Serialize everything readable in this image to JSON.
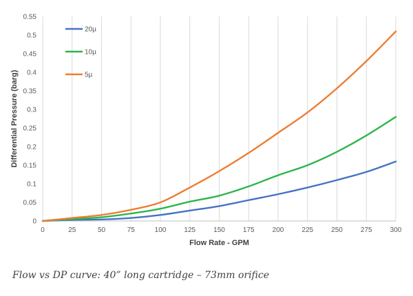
{
  "caption": "Flow vs DP curve: 40” long cartridge – 73mm orifice",
  "chart_data": {
    "type": "line",
    "title": "",
    "xlabel": "Flow Rate - GPM",
    "ylabel": "Differential Pressure (barg)",
    "xlim": [
      0,
      300
    ],
    "ylim": [
      0,
      0.55
    ],
    "x_ticks": [
      0,
      25,
      50,
      75,
      100,
      125,
      150,
      175,
      200,
      225,
      250,
      275,
      300
    ],
    "y_ticks": [
      0,
      0.05,
      0.1,
      0.15,
      0.2,
      0.25,
      0.3,
      0.35,
      0.4,
      0.45,
      0.5,
      0.55
    ],
    "y_tick_labels": [
      "0",
      "0.05",
      "0.1",
      "0.15",
      "0.2",
      "0.25",
      "0.3",
      "0.35",
      "0.4",
      "0.45",
      "0.5",
      "0.55"
    ],
    "grid": "vertical",
    "legend_position": "top-left",
    "x": [
      0,
      25,
      50,
      75,
      100,
      125,
      150,
      175,
      200,
      225,
      250,
      275,
      300
    ],
    "series": [
      {
        "name": "20µ",
        "color": "#4472C4",
        "values": [
          0,
          0.003,
          0.004,
          0.008,
          0.016,
          0.028,
          0.04,
          0.056,
          0.072,
          0.09,
          0.11,
          0.132,
          0.16
        ]
      },
      {
        "name": "10µ",
        "color": "#2DB54B",
        "values": [
          0,
          0.005,
          0.01,
          0.02,
          0.033,
          0.052,
          0.068,
          0.093,
          0.123,
          0.15,
          0.186,
          0.23,
          0.28
        ]
      },
      {
        "name": "5µ",
        "color": "#ED7D31",
        "values": [
          0,
          0.008,
          0.016,
          0.03,
          0.05,
          0.09,
          0.134,
          0.183,
          0.237,
          0.292,
          0.357,
          0.43,
          0.51
        ]
      }
    ]
  }
}
